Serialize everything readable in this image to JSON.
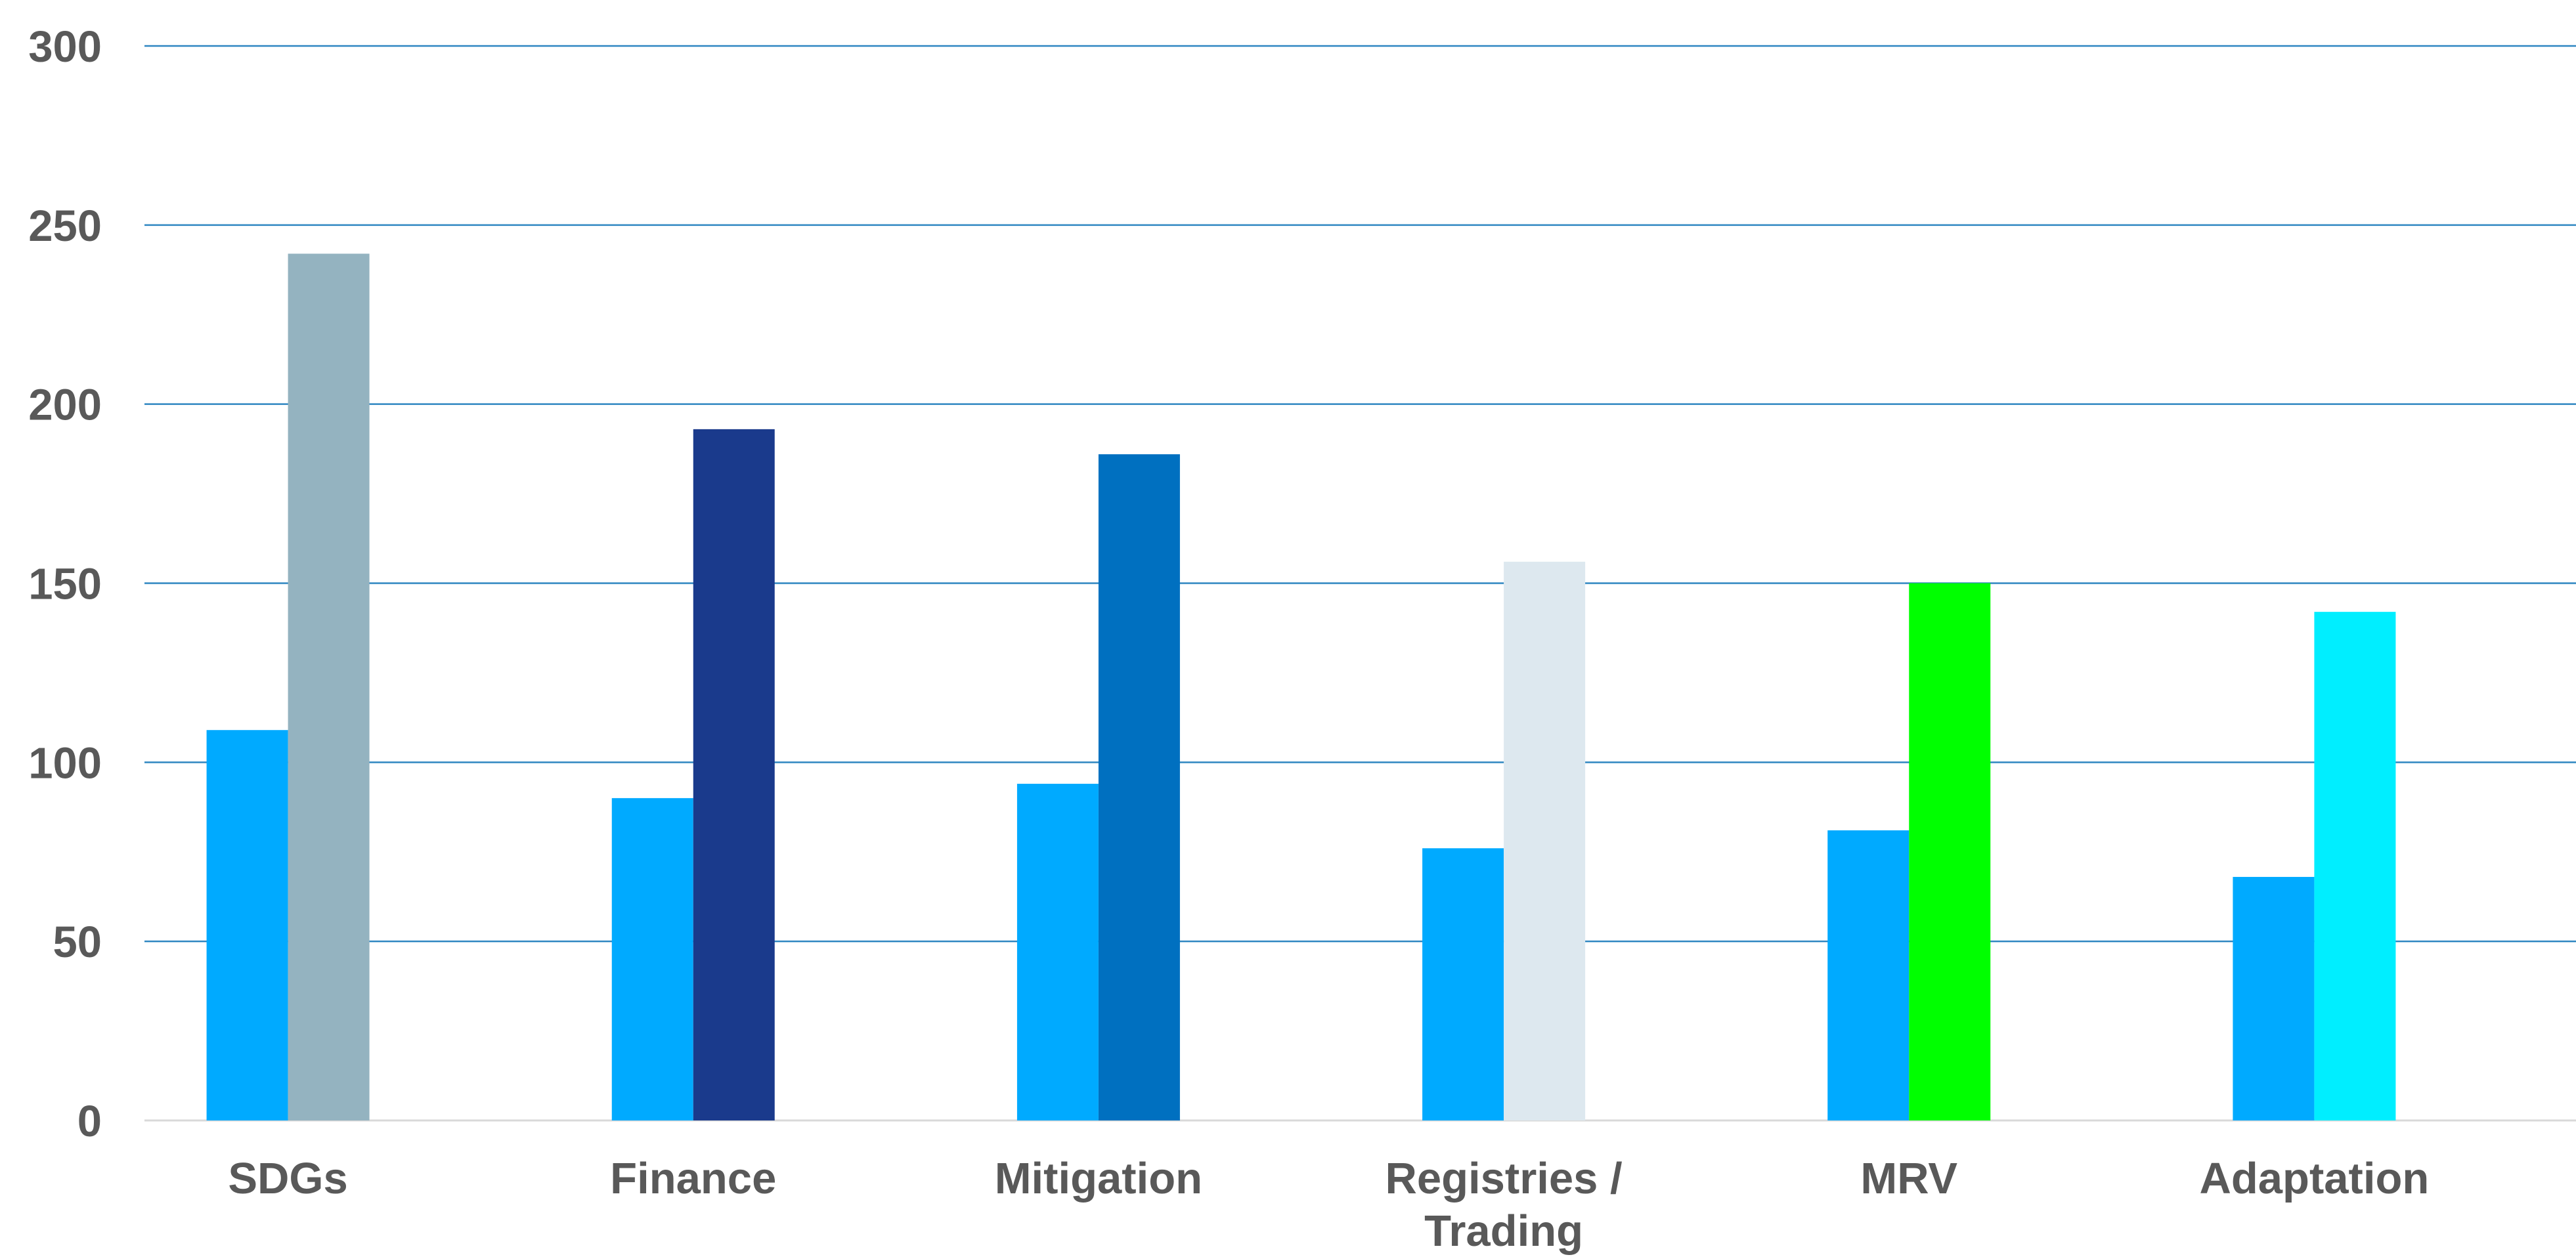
{
  "chart_data": {
    "type": "bar",
    "title": "",
    "xlabel": "",
    "ylabel": "",
    "ylim": [
      0,
      300
    ],
    "yticks": [
      "0",
      "50",
      "100",
      "150",
      "200",
      "250",
      "300"
    ],
    "grid": true,
    "legend": "none",
    "categories": [
      [
        "SDGs"
      ],
      [
        "Finance"
      ],
      [
        "Mitigation"
      ],
      [
        "Registries /",
        "Trading"
      ],
      [
        "MRV"
      ],
      [
        "Adaptation"
      ]
    ],
    "series": [
      {
        "values": [
          109,
          90,
          94,
          76,
          81,
          68
        ],
        "colors": [
          "#00aaff",
          "#00aaff",
          "#00aaff",
          "#00aaff",
          "#00aaff",
          "#00aaff"
        ]
      },
      {
        "values": [
          242,
          193,
          186,
          156,
          150,
          142
        ],
        "colors": [
          "#94b3c0",
          "#1a3a8c",
          "#0070c0",
          "#dde8ef",
          "#00ff00",
          "#00eeff"
        ]
      }
    ]
  }
}
